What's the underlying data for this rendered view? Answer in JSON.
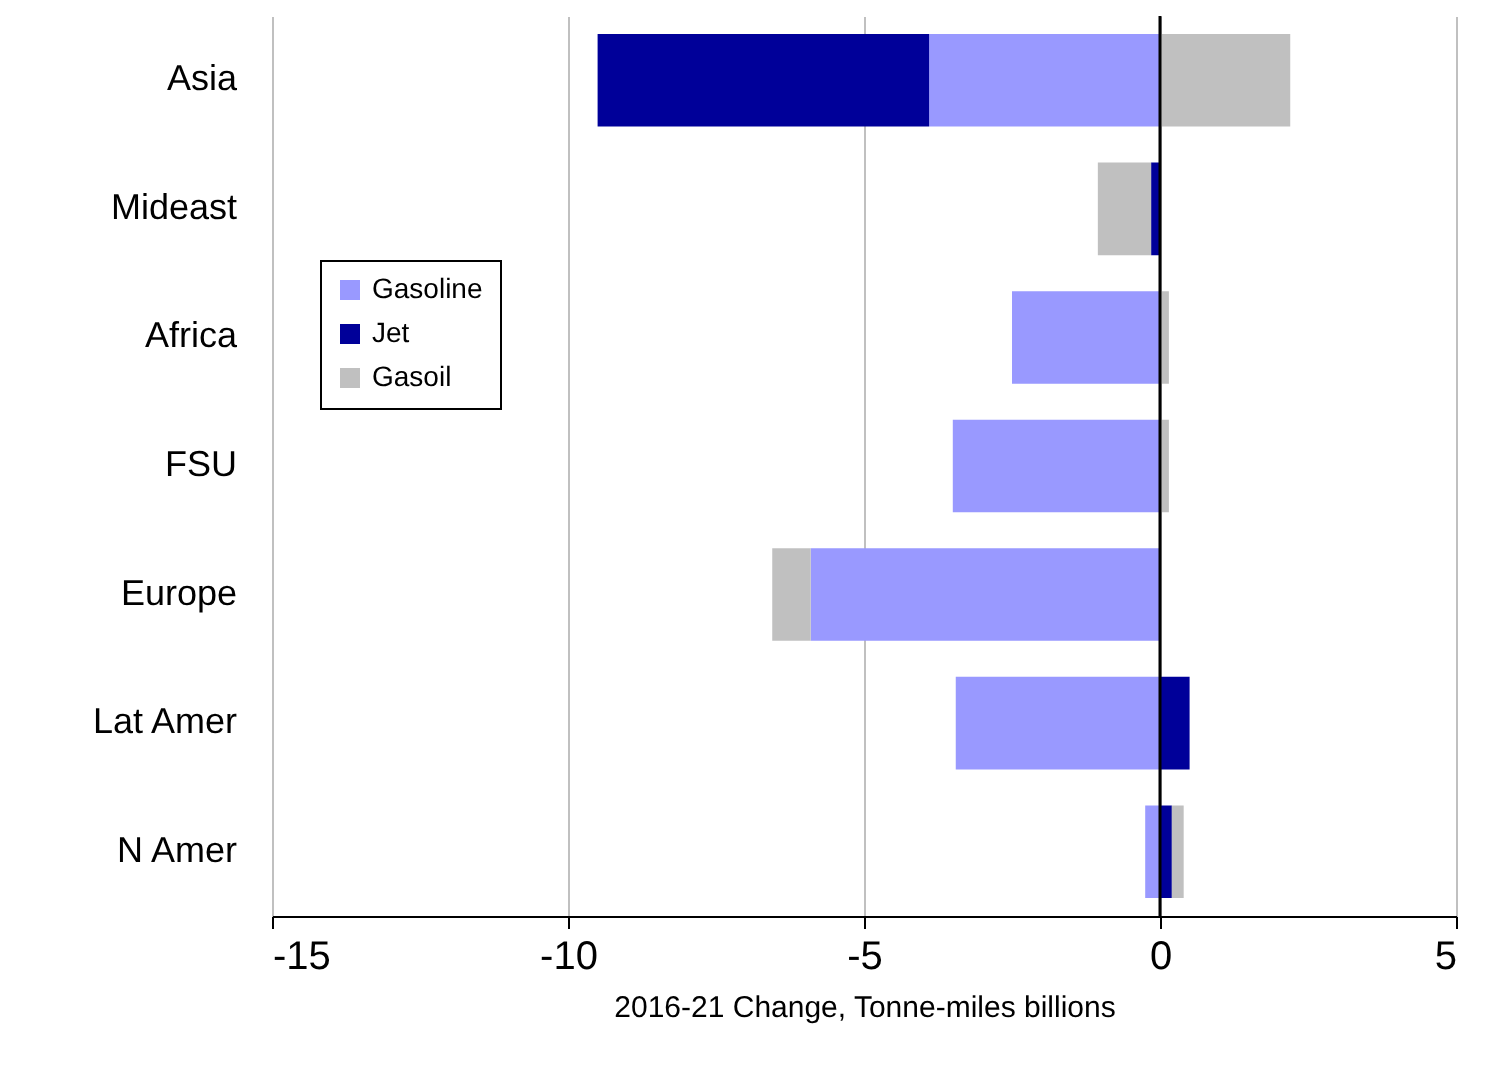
{
  "chart_data": {
    "type": "bar",
    "orientation": "horizontal",
    "stacked": true,
    "xlabel": "2016-21  Change,  Tonne-miles  billions",
    "categories": [
      "Asia",
      "Mideast",
      "Africa",
      "FSU",
      "Europe",
      "Lat Amer",
      "N Amer"
    ],
    "series": [
      {
        "name": "Gasoline",
        "color": "#9999ff",
        "values": [
          -3.9,
          0,
          -2.5,
          -3.5,
          -5.9,
          -3.45,
          -0.25
        ]
      },
      {
        "name": "Jet",
        "color": "#000099",
        "values": [
          -5.6,
          -0.15,
          0,
          0,
          0,
          0.5,
          0.2
        ]
      },
      {
        "name": "Gasoil",
        "color": "#c0c0c0",
        "values": [
          2.2,
          -0.9,
          0.15,
          0.15,
          -0.65,
          0,
          0.2
        ]
      }
    ],
    "xlim": [
      -15,
      5
    ],
    "xticks": [
      -15,
      -10,
      -5,
      0,
      5
    ],
    "grid": "x",
    "legend": "top left",
    "ref_lines": [
      {
        "axis": "x",
        "value": 0,
        "color": "#000000"
      }
    ]
  }
}
